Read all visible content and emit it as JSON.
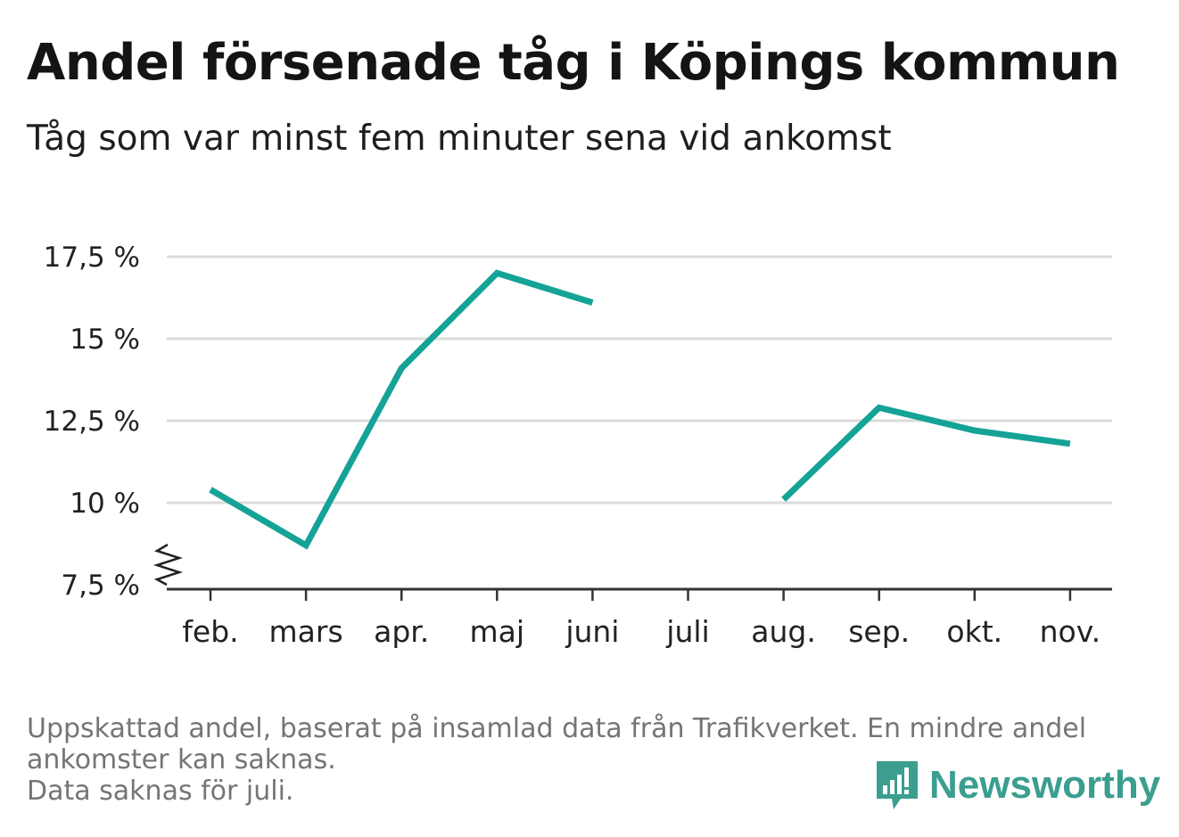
{
  "title": "Andel försenade tåg i Köpings kommun",
  "subtitle": "Tåg som var minst fem minuter sena vid ankomst",
  "notes": [
    "Uppskattad andel, baserat på insamlad data från Trafikverket. En mindre andel",
    "ankomster kan saknas.",
    "Data saknas för juli."
  ],
  "logo": {
    "text": "Newsworthy",
    "icon": "bar-chart-speech-bubble-icon",
    "color": "#3b9e8f"
  },
  "chart_data": {
    "type": "line",
    "title": "Andel försenade tåg i Köpings kommun",
    "subtitle": "Tåg som var minst fem minuter sena vid ankomst",
    "xlabel": "",
    "ylabel": "",
    "categories": [
      "feb.",
      "mars",
      "apr.",
      "maj",
      "juni",
      "juli",
      "aug.",
      "sep.",
      "okt.",
      "nov."
    ],
    "series": [
      {
        "color": "#14a396",
        "values": [
          10.4,
          8.7,
          14.1,
          17.0,
          16.1,
          null,
          10.1,
          12.9,
          12.2,
          11.8
        ]
      }
    ],
    "ylim": [
      7.5,
      17.5
    ],
    "yticks": [
      7.5,
      10,
      12.5,
      15,
      17.5
    ],
    "ytick_labels": [
      "7,5 %",
      "10 %",
      "12,5 %",
      "15 %",
      "17,5 %"
    ],
    "axis_break": true,
    "grid": true,
    "legend": "none"
  }
}
